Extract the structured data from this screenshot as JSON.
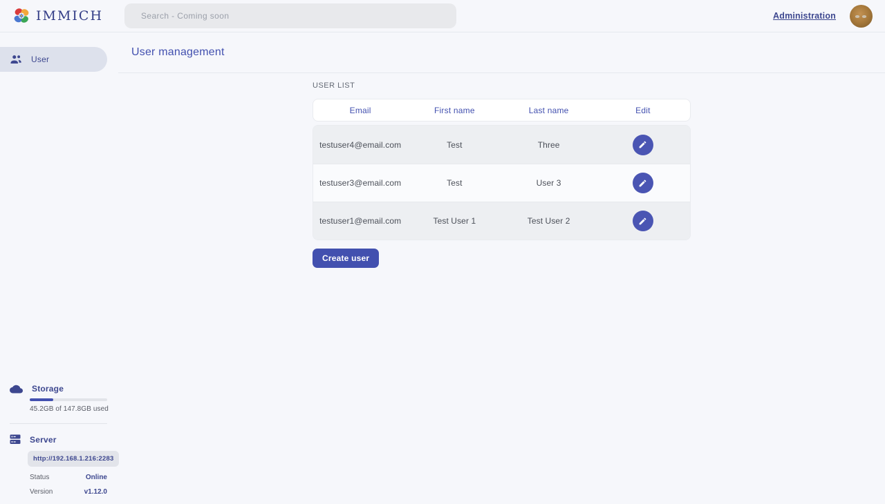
{
  "header": {
    "logo_text": "IMMICH",
    "search_placeholder": "Search - Coming soon",
    "admin_link": "Administration"
  },
  "sidebar": {
    "items": [
      {
        "label": "User"
      }
    ],
    "storage": {
      "title": "Storage",
      "usage_text": "45.2GB of 147.8GB used",
      "percent_used": 30.6
    },
    "server": {
      "title": "Server",
      "url": "http://192.168.1.216:2283",
      "status_label": "Status",
      "status_value": "Online",
      "version_label": "Version",
      "version_value": "v1.12.0"
    }
  },
  "page": {
    "title": "User management",
    "section_label": "USER LIST",
    "create_button": "Create user"
  },
  "table": {
    "headers": [
      "Email",
      "First name",
      "Last name",
      "Edit"
    ],
    "rows": [
      {
        "email": "testuser4@email.com",
        "first_name": "Test",
        "last_name": "Three"
      },
      {
        "email": "testuser3@email.com",
        "first_name": "Test",
        "last_name": "User 3"
      },
      {
        "email": "testuser1@email.com",
        "first_name": "Test User 1",
        "last_name": "Test User 2"
      }
    ]
  },
  "colors": {
    "primary": "#4250af",
    "accent_text": "#3d478f",
    "row_stripe": "#edeff2",
    "online_status": "#3d478f"
  }
}
